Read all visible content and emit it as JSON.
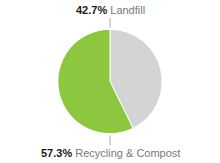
{
  "chart_data": {
    "type": "pie",
    "categories": [
      "Landfill",
      "Recycling & Compost"
    ],
    "values": [
      42.7,
      57.3
    ],
    "value_labels": [
      "42.7%",
      "57.3%"
    ],
    "colors": [
      "#d4d4d4",
      "#8dc63f"
    ],
    "data_labels": true
  }
}
